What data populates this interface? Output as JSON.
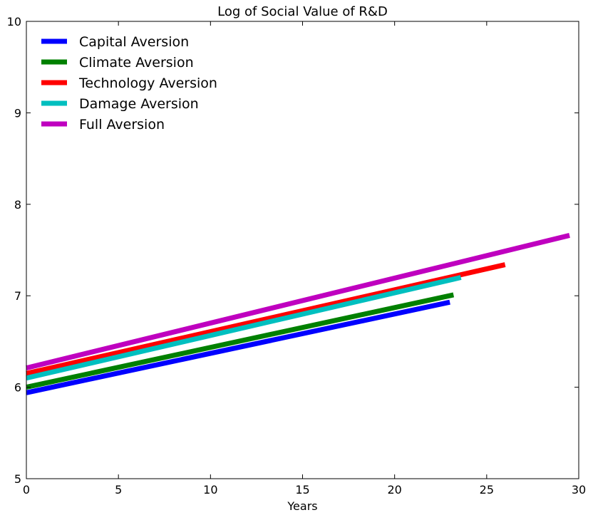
{
  "chart_data": {
    "type": "line",
    "title": "Log of Social Value of R&D",
    "xlabel": "Years",
    "ylabel": "",
    "xlim": [
      0,
      30
    ],
    "ylim": [
      5,
      10
    ],
    "xticks": [
      "0",
      "5",
      "10",
      "15",
      "20",
      "25",
      "30"
    ],
    "yticks": [
      "5",
      "6",
      "7",
      "8",
      "9",
      "10"
    ],
    "grid": false,
    "legend_position": "top-left",
    "series": [
      {
        "name": "Capital Aversion",
        "color": "#0000ff",
        "x": [
          0,
          23
        ],
        "y": [
          5.94,
          6.93
        ]
      },
      {
        "name": "Climate Aversion",
        "color": "#008000",
        "x": [
          0,
          23.2
        ],
        "y": [
          6.0,
          7.01
        ]
      },
      {
        "name": "Technology Aversion",
        "color": "#ff0000",
        "x": [
          0,
          26
        ],
        "y": [
          6.15,
          7.34
        ]
      },
      {
        "name": "Damage Aversion",
        "color": "#00bfbf",
        "x": [
          0,
          23.6
        ],
        "y": [
          6.1,
          7.2
        ]
      },
      {
        "name": "Full Aversion",
        "color": "#bf00bf",
        "x": [
          0,
          29.5
        ],
        "y": [
          6.21,
          7.66
        ]
      }
    ]
  }
}
